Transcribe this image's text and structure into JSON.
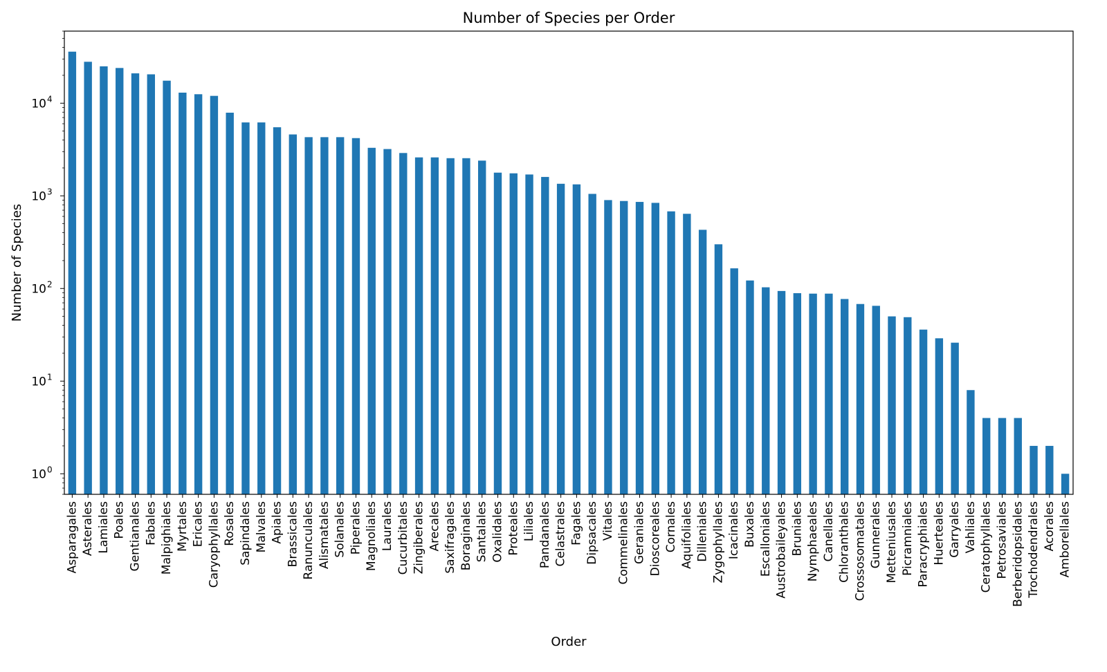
{
  "chart_data": {
    "type": "bar",
    "title": "Number of Species per Order",
    "xlabel": "Order",
    "ylabel": "Number of Species",
    "yscale": "log",
    "ylim": [
      0.6,
      60000
    ],
    "grid": false,
    "legend": "none",
    "bar_color": "#1f77b4",
    "categories": [
      "Asparagales",
      "Asterales",
      "Lamiales",
      "Poales",
      "Gentianales",
      "Fabales",
      "Malpighiales",
      "Myrtales",
      "Ericales",
      "Caryophyllales",
      "Rosales",
      "Sapindales",
      "Malvales",
      "Apiales",
      "Brassicales",
      "Ranunculales",
      "Alismatales",
      "Solanales",
      "Piperales",
      "Magnoliales",
      "Laurales",
      "Cucurbitales",
      "Zingiberales",
      "Arecales",
      "Saxifragales",
      "Boraginales",
      "Santalales",
      "Oxalidales",
      "Proteales",
      "Liliales",
      "Pandanales",
      "Celastrales",
      "Fagales",
      "Dipsacales",
      "Vitales",
      "Commelinales",
      "Geraniales",
      "Dioscoreales",
      "Cornales",
      "Aquifoliales",
      "Dilleniales",
      "Zygophyllales",
      "Icacinales",
      "Buxales",
      "Escalloniales",
      "Austrobaileyales",
      "Bruniales",
      "Nymphaeales",
      "Canellales",
      "Chloranthales",
      "Crossosomatales",
      "Gunnerales",
      "Metteniusales",
      "Picramniales",
      "Paracryphiales",
      "Huerteales",
      "Garryales",
      "Vahliales",
      "Ceratophyllales",
      "Petrosaviales",
      "Berberidopsidales",
      "Trochodendrales",
      "Acorales",
      "Amborellales"
    ],
    "values": [
      36000,
      28000,
      25000,
      24000,
      21000,
      20500,
      17500,
      13000,
      12500,
      12000,
      7900,
      6200,
      6200,
      5500,
      4600,
      4300,
      4300,
      4300,
      4200,
      3300,
      3200,
      2900,
      2600,
      2600,
      2550,
      2550,
      2400,
      1780,
      1750,
      1700,
      1600,
      1350,
      1330,
      1050,
      900,
      880,
      860,
      840,
      680,
      640,
      430,
      300,
      165,
      122,
      103,
      94,
      89,
      88,
      88,
      77,
      68,
      65,
      50,
      49,
      36,
      29,
      26,
      8,
      4,
      4,
      4,
      2,
      2,
      1
    ],
    "yticks": [
      {
        "base": "10",
        "exp": "0",
        "value": 1
      },
      {
        "base": "10",
        "exp": "1",
        "value": 10
      },
      {
        "base": "10",
        "exp": "2",
        "value": 100
      },
      {
        "base": "10",
        "exp": "3",
        "value": 1000
      },
      {
        "base": "10",
        "exp": "4",
        "value": 10000
      }
    ]
  }
}
